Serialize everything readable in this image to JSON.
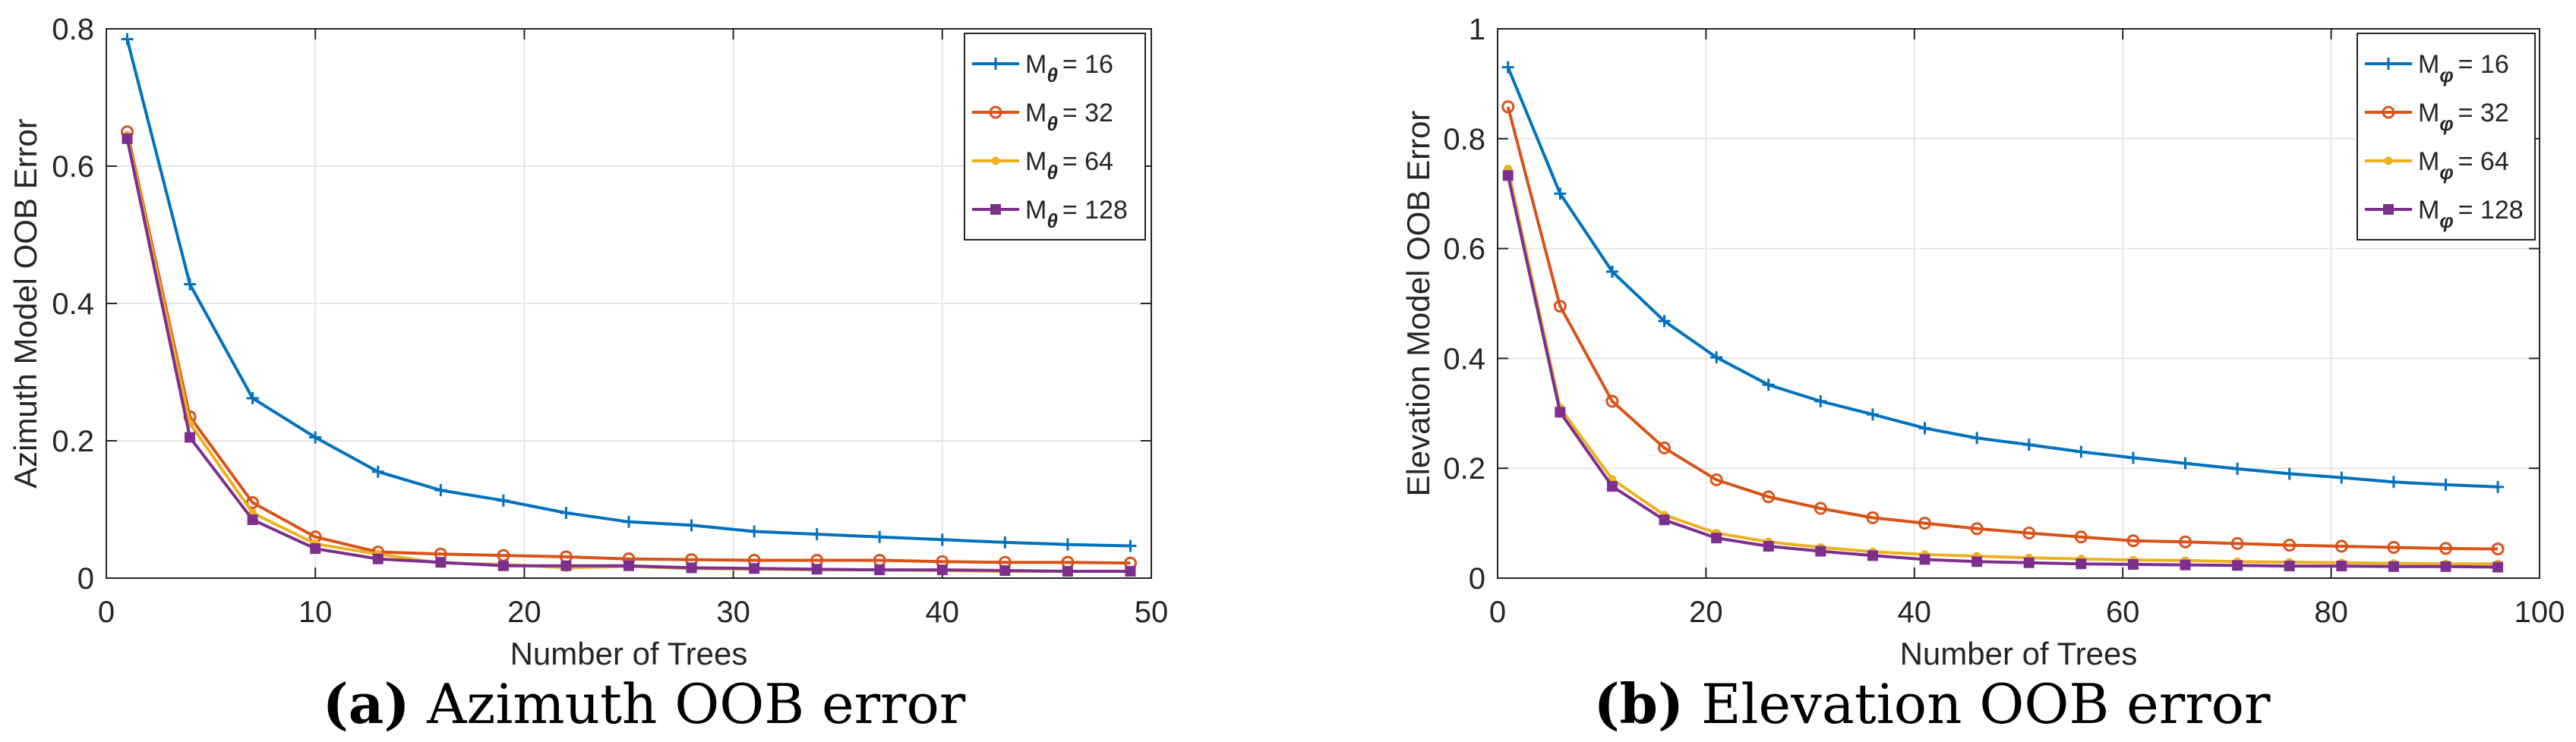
{
  "chart_data": [
    {
      "type": "line",
      "xlabel": "Number of Trees",
      "ylabel": "Azimuth Model OOB Error",
      "xlim": [
        0,
        50
      ],
      "ylim": [
        0,
        0.8
      ],
      "xticks": [
        "0",
        "10",
        "20",
        "30",
        "40",
        "50"
      ],
      "yticks": [
        "0",
        "0.2",
        "0.4",
        "0.6",
        "0.8"
      ],
      "xtick_values": [
        0,
        10,
        20,
        30,
        40,
        50
      ],
      "ytick_values": [
        0,
        0.2,
        0.4,
        0.6,
        0.8
      ],
      "grid": true,
      "legend_position": "top-right",
      "legend_symbol": "θ",
      "x": [
        1,
        4,
        7,
        10,
        13,
        16,
        19,
        22,
        25,
        28,
        31,
        34,
        37,
        40,
        43,
        46,
        49
      ],
      "series": [
        {
          "name": "M_θ = 16",
          "subscript": "θ",
          "label_value": "= 16",
          "color": "#0072BD",
          "marker": "plus",
          "values": [
            0.785,
            0.428,
            0.262,
            0.205,
            0.155,
            0.128,
            0.113,
            0.095,
            0.082,
            0.077,
            0.068,
            0.064,
            0.06,
            0.056,
            0.052,
            0.049,
            0.047
          ]
        },
        {
          "name": "M_θ = 32",
          "subscript": "θ",
          "label_value": "= 32",
          "color": "#D95319",
          "marker": "circle",
          "values": [
            0.65,
            0.235,
            0.11,
            0.06,
            0.038,
            0.035,
            0.033,
            0.031,
            0.028,
            0.027,
            0.026,
            0.026,
            0.026,
            0.024,
            0.023,
            0.023,
            0.022
          ]
        },
        {
          "name": "M_θ = 64",
          "subscript": "θ",
          "label_value": "= 64",
          "color": "#EDB120",
          "marker": "dot",
          "values": [
            0.645,
            0.225,
            0.095,
            0.05,
            0.035,
            0.022,
            0.02,
            0.015,
            0.017,
            0.014,
            0.013,
            0.012,
            0.012,
            0.011,
            0.01,
            0.01,
            0.01
          ]
        },
        {
          "name": "M_θ = 128",
          "subscript": "θ",
          "label_value": "= 128",
          "color": "#7E2F8E",
          "marker": "square",
          "values": [
            0.64,
            0.205,
            0.085,
            0.043,
            0.028,
            0.023,
            0.018,
            0.018,
            0.018,
            0.015,
            0.014,
            0.013,
            0.012,
            0.012,
            0.011,
            0.01,
            0.01
          ]
        }
      ]
    },
    {
      "type": "line",
      "xlabel": "Number of Trees",
      "ylabel": "Elevation Model OOB Error",
      "xlim": [
        0,
        100
      ],
      "ylim": [
        0,
        1
      ],
      "xticks": [
        "0",
        "20",
        "40",
        "60",
        "80",
        "100"
      ],
      "yticks": [
        "0",
        "0.2",
        "0.4",
        "0.6",
        "0.8",
        "1"
      ],
      "xtick_values": [
        0,
        20,
        40,
        60,
        80,
        100
      ],
      "ytick_values": [
        0,
        0.2,
        0.4,
        0.6,
        0.8,
        1
      ],
      "grid": true,
      "legend_position": "top-right",
      "legend_symbol": "φ",
      "x": [
        1,
        6,
        11,
        16,
        21,
        26,
        31,
        36,
        41,
        46,
        51,
        56,
        61,
        66,
        71,
        76,
        81,
        86,
        91,
        96
      ],
      "series": [
        {
          "name": "M_φ = 16",
          "subscript": "φ",
          "label_value": "= 16",
          "color": "#0072BD",
          "marker": "plus",
          "values": [
            0.93,
            0.7,
            0.558,
            0.468,
            0.402,
            0.352,
            0.322,
            0.298,
            0.273,
            0.255,
            0.243,
            0.23,
            0.219,
            0.209,
            0.199,
            0.19,
            0.183,
            0.175,
            0.17,
            0.166
          ]
        },
        {
          "name": "M_φ = 32",
          "subscript": "φ",
          "label_value": "= 32",
          "color": "#D95319",
          "marker": "circle",
          "values": [
            0.858,
            0.495,
            0.322,
            0.237,
            0.179,
            0.148,
            0.127,
            0.11,
            0.1,
            0.09,
            0.082,
            0.075,
            0.068,
            0.066,
            0.063,
            0.06,
            0.058,
            0.056,
            0.054,
            0.053
          ]
        },
        {
          "name": "M_φ = 64",
          "subscript": "φ",
          "label_value": "= 64",
          "color": "#EDB120",
          "marker": "dot",
          "values": [
            0.745,
            0.31,
            0.18,
            0.115,
            0.082,
            0.066,
            0.056,
            0.048,
            0.043,
            0.04,
            0.037,
            0.035,
            0.033,
            0.032,
            0.03,
            0.029,
            0.028,
            0.027,
            0.026,
            0.026
          ]
        },
        {
          "name": "M_φ = 128",
          "subscript": "φ",
          "label_value": "= 128",
          "color": "#7E2F8E",
          "marker": "square",
          "values": [
            0.733,
            0.302,
            0.167,
            0.106,
            0.073,
            0.058,
            0.049,
            0.041,
            0.034,
            0.03,
            0.028,
            0.026,
            0.025,
            0.024,
            0.023,
            0.022,
            0.022,
            0.021,
            0.021,
            0.02
          ]
        }
      ]
    }
  ],
  "captions": {
    "a": {
      "tag": "(a)",
      "text": "Azimuth OOB error"
    },
    "b": {
      "tag": "(b)",
      "text": "Elevation OOB error"
    }
  }
}
